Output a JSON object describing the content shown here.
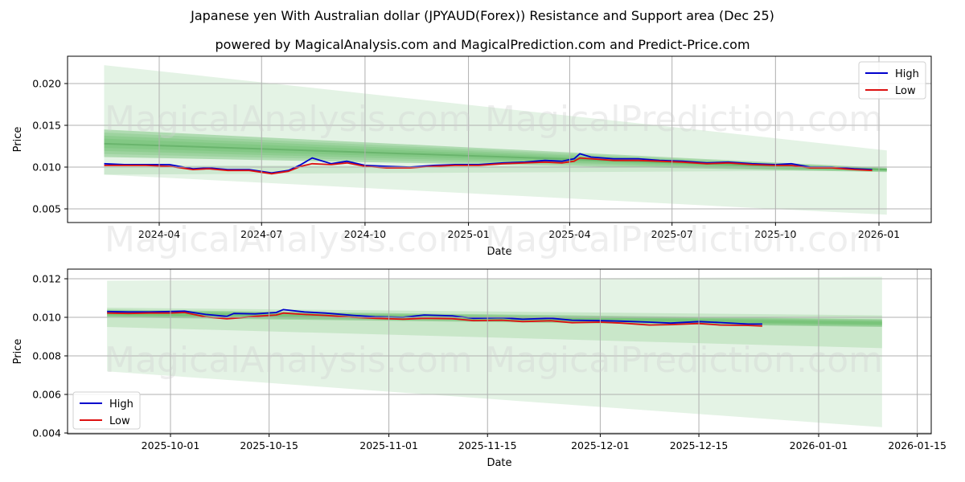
{
  "header": {
    "title": "Japanese yen With Australian dollar (JPYAUD(Forex)) Resistance and Support area (Dec 25)",
    "subtitle": "powered by MagicalAnalysis.com and MagicalPrediction.com and Predict-Price.com"
  },
  "watermarks": [
    "MagicalAnalysis.com",
    "MagicalPrediction.com"
  ],
  "colors": {
    "high": "#0000cc",
    "low": "#dd1111",
    "band": "#4caf50",
    "grid": "#b0b0b0"
  },
  "chart_data": [
    {
      "type": "line",
      "title": "Japanese yen With Australian dollar (JPYAUD(Forex)) Resistance and Support area (Dec 25)",
      "xlabel": "Date",
      "ylabel": "Price",
      "x_ticks": [
        "2024-04",
        "2024-07",
        "2024-10",
        "2025-01",
        "2025-04",
        "2025-07",
        "2025-10",
        "2026-01"
      ],
      "y_ticks": [
        "0.005",
        "0.010",
        "0.015",
        "0.020"
      ],
      "ylim": [
        0.0033,
        0.0232
      ],
      "grid": true,
      "legend": {
        "position": "upper right",
        "entries": [
          "High",
          "Low"
        ]
      },
      "x": [
        "2024-02-12",
        "2024-03-01",
        "2024-03-20",
        "2024-04-10",
        "2024-05-01",
        "2024-05-15",
        "2024-06-01",
        "2024-06-20",
        "2024-07-10",
        "2024-07-25",
        "2024-08-05",
        "2024-08-15",
        "2024-09-01",
        "2024-09-15",
        "2024-10-01",
        "2024-10-20",
        "2024-11-10",
        "2024-12-01",
        "2024-12-20",
        "2025-01-10",
        "2025-02-01",
        "2025-02-20",
        "2025-03-10",
        "2025-03-25",
        "2025-04-05",
        "2025-04-10",
        "2025-04-20",
        "2025-05-10",
        "2025-06-01",
        "2025-06-20",
        "2025-07-10",
        "2025-08-01",
        "2025-08-20",
        "2025-09-10",
        "2025-10-01",
        "2025-10-15",
        "2025-11-01",
        "2025-11-20",
        "2025-12-10",
        "2025-12-26"
      ],
      "series": [
        {
          "name": "High",
          "values": [
            0.0104,
            0.0103,
            0.0103,
            0.0103,
            0.0098,
            0.0099,
            0.0097,
            0.0097,
            0.0093,
            0.0096,
            0.0103,
            0.0111,
            0.0104,
            0.0107,
            0.0102,
            0.0101,
            0.01,
            0.0102,
            0.0103,
            0.0103,
            0.0105,
            0.0106,
            0.0108,
            0.0107,
            0.011,
            0.0116,
            0.0112,
            0.011,
            0.011,
            0.0108,
            0.0107,
            0.0105,
            0.0106,
            0.0104,
            0.0103,
            0.0104,
            0.01,
            0.01,
            0.0098,
            0.0097
          ]
        },
        {
          "name": "Low",
          "values": [
            0.0102,
            0.0102,
            0.0102,
            0.0101,
            0.0097,
            0.0098,
            0.0096,
            0.0096,
            0.0092,
            0.0095,
            0.0101,
            0.0104,
            0.0103,
            0.0105,
            0.0101,
            0.0099,
            0.0099,
            0.0101,
            0.0102,
            0.0102,
            0.0104,
            0.0105,
            0.0106,
            0.0105,
            0.0107,
            0.0111,
            0.011,
            0.0108,
            0.0108,
            0.0107,
            0.0106,
            0.0104,
            0.0105,
            0.0103,
            0.0102,
            0.0102,
            0.0099,
            0.0099,
            0.0097,
            0.0096
          ]
        }
      ],
      "bands": [
        {
          "name": "outer-upper",
          "start": [
            0.0222,
            0.0091
          ],
          "end": [
            0.012,
            0.0096
          ],
          "x_range": [
            "2024-02-12",
            "2026-01-08"
          ]
        },
        {
          "name": "outer-lower",
          "start": [
            0.0102,
            0.0091
          ],
          "end": [
            0.0101,
            0.0043
          ],
          "x_range": [
            "2024-02-12",
            "2026-01-08"
          ]
        },
        {
          "name": "core-resistance-support",
          "start": [
            0.0145,
            0.0112
          ],
          "end": [
            0.0099,
            0.0094
          ],
          "x_range": [
            "2024-02-12",
            "2026-01-08"
          ]
        },
        {
          "name": "center-line",
          "start": [
            0.0128
          ],
          "end": [
            0.0097
          ]
        }
      ]
    },
    {
      "type": "line",
      "xlabel": "Date",
      "ylabel": "Price",
      "x_ticks": [
        "2025-10-01",
        "2025-10-15",
        "2025-11-01",
        "2025-11-15",
        "2025-12-01",
        "2025-12-15",
        "2026-01-01",
        "2026-01-15"
      ],
      "y_ticks": [
        "0.004",
        "0.006",
        "0.008",
        "0.010",
        "0.012"
      ],
      "ylim": [
        0.0038,
        0.0125
      ],
      "grid": true,
      "legend": {
        "position": "lower left",
        "entries": [
          "High",
          "Low"
        ]
      },
      "x": [
        "2025-09-22",
        "2025-09-25",
        "2025-09-28",
        "2025-10-01",
        "2025-10-03",
        "2025-10-06",
        "2025-10-09",
        "2025-10-10",
        "2025-10-13",
        "2025-10-16",
        "2025-10-17",
        "2025-10-20",
        "2025-10-23",
        "2025-10-27",
        "2025-10-30",
        "2025-11-03",
        "2025-11-06",
        "2025-11-10",
        "2025-11-13",
        "2025-11-17",
        "2025-11-20",
        "2025-11-24",
        "2025-11-27",
        "2025-12-01",
        "2025-12-04",
        "2025-12-08",
        "2025-12-11",
        "2025-12-15",
        "2025-12-18",
        "2025-12-22",
        "2025-12-24"
      ],
      "series": [
        {
          "name": "High",
          "values": [
            0.0103,
            0.01028,
            0.01028,
            0.0103,
            0.01032,
            0.01015,
            0.01005,
            0.0102,
            0.01018,
            0.01025,
            0.0104,
            0.01028,
            0.01022,
            0.0101,
            0.01003,
            0.01,
            0.01012,
            0.01008,
            0.00995,
            0.00998,
            0.0099,
            0.00995,
            0.00985,
            0.00983,
            0.0098,
            0.00975,
            0.0097,
            0.00978,
            0.00973,
            0.00965,
            0.00965
          ]
        },
        {
          "name": "Low",
          "values": [
            0.01022,
            0.0102,
            0.01022,
            0.01022,
            0.01025,
            0.01002,
            0.00992,
            0.00995,
            0.01005,
            0.01012,
            0.01022,
            0.01015,
            0.0101,
            0.01,
            0.00995,
            0.0099,
            0.00995,
            0.00993,
            0.00983,
            0.00985,
            0.00978,
            0.00982,
            0.00972,
            0.00975,
            0.0097,
            0.0096,
            0.00962,
            0.00968,
            0.0096,
            0.00958,
            0.00955
          ]
        }
      ],
      "bands": [
        {
          "name": "outer",
          "start": [
            0.0119,
            0.0072
          ],
          "end": [
            0.0121,
            0.0043
          ],
          "x_range": [
            "2025-09-22",
            "2026-01-10"
          ]
        },
        {
          "name": "mid",
          "start": [
            0.0105,
            0.0095
          ],
          "end": [
            0.0101,
            0.0084
          ],
          "x_range": [
            "2025-09-22",
            "2026-01-10"
          ]
        },
        {
          "name": "core",
          "start": [
            0.0104,
            0.01
          ],
          "end": [
            0.0099,
            0.0095
          ],
          "x_range": [
            "2025-09-22",
            "2026-01-10"
          ]
        }
      ]
    }
  ],
  "legend": {
    "high_label": "High",
    "low_label": "Low"
  }
}
